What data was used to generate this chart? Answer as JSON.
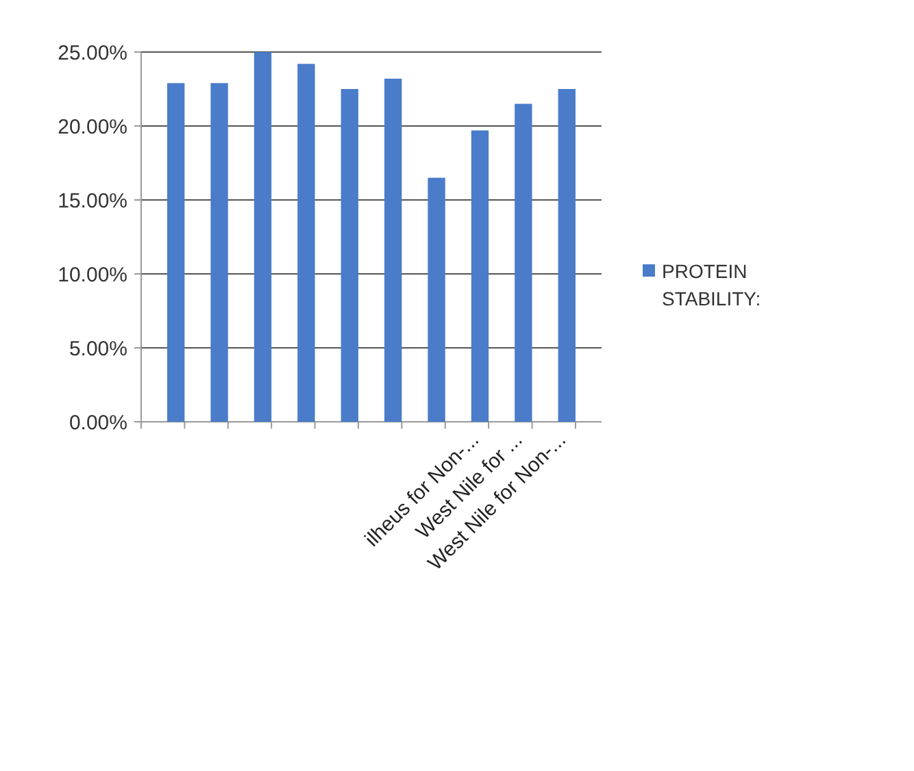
{
  "chart_data": {
    "type": "bar",
    "categories": [
      null,
      null,
      null,
      null,
      null,
      null,
      null,
      "ilheus for Non-...",
      "West  Nile for ...",
      "West  Nile for Non-..."
    ],
    "series": [
      {
        "name": "PROTEIN STABILITY:",
        "color": "#4a7cc9",
        "values": [
          22.9,
          22.9,
          25,
          24.2,
          22.5,
          23.2,
          16.5,
          19.7,
          21.5,
          22.5
        ]
      }
    ],
    "ylim": [
      0,
      25
    ],
    "yticks": [
      {
        "value": 0,
        "label": "0.00%"
      },
      {
        "value": 5,
        "label": "5.00%"
      },
      {
        "value": 10,
        "label": "10.00%"
      },
      {
        "value": 15,
        "label": "15.00%"
      },
      {
        "value": 20,
        "label": "20.00%"
      },
      {
        "value": 25,
        "label": "25.00%"
      }
    ],
    "grid": true,
    "legend": "right"
  }
}
